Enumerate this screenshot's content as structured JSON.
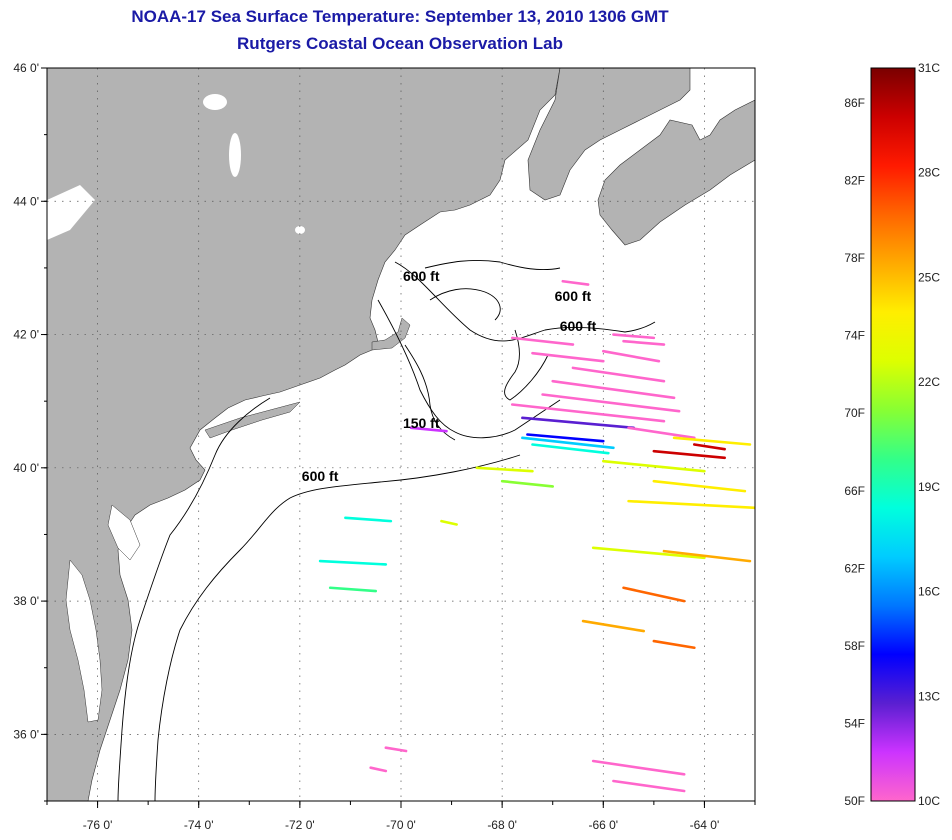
{
  "title": "NOAA-17 Sea Surface Temperature:  September 13, 2010 1306 GMT",
  "subtitle": "Rutgers Coastal Ocean Observation Lab",
  "map": {
    "lon_range": [
      -77,
      -63
    ],
    "lat_range": [
      35,
      46
    ],
    "lat_ticks": [
      {
        "value": 46,
        "label": "46 0'"
      },
      {
        "value": 44,
        "label": "44 0'"
      },
      {
        "value": 42,
        "label": "42 0'"
      },
      {
        "value": 40,
        "label": "40 0'"
      },
      {
        "value": 38,
        "label": "38 0'"
      },
      {
        "value": 36,
        "label": "36 0'"
      }
    ],
    "lon_ticks": [
      {
        "value": -76,
        "label": "-76 0'"
      },
      {
        "value": -74,
        "label": "-74 0'"
      },
      {
        "value": -72,
        "label": "-72 0'"
      },
      {
        "value": -70,
        "label": "-70 0'"
      },
      {
        "value": -68,
        "label": "-68 0'"
      },
      {
        "value": -66,
        "label": "-66 0'"
      },
      {
        "value": -64,
        "label": "-64 0'"
      }
    ],
    "land_color": "#b3b3b3",
    "ocean_color": "#ffffff",
    "grid": true,
    "contour_labels": [
      {
        "text": "600 ft",
        "lon": -69.6,
        "lat": 42.8
      },
      {
        "text": "600 ft",
        "lon": -66.6,
        "lat": 42.5
      },
      {
        "text": "600 ft",
        "lon": -66.5,
        "lat": 42.05
      },
      {
        "text": "150 ft",
        "lon": -69.6,
        "lat": 40.6
      },
      {
        "text": "600 ft",
        "lon": -71.6,
        "lat": 39.8
      }
    ]
  },
  "colorbar": {
    "fahrenheit_labels": [
      "86F",
      "82F",
      "78F",
      "74F",
      "70F",
      "66F",
      "62F",
      "58F",
      "54F",
      "50F"
    ],
    "celsius_labels": [
      "31C",
      "28C",
      "25C",
      "22C",
      "19C",
      "16C",
      "13C",
      "10C"
    ],
    "range_c": [
      10,
      31
    ],
    "colors": [
      "#ff66cc",
      "#cc33ff",
      "#5a1fd1",
      "#0000ff",
      "#0077ff",
      "#00ccff",
      "#00ffdd",
      "#33ff88",
      "#88ff33",
      "#ddff00",
      "#ffee00",
      "#ffaa00",
      "#ff6600",
      "#ff1a00",
      "#cc0000",
      "#7a0000"
    ]
  },
  "sst_streaks": [
    {
      "lon1": -67.6,
      "lat1": 40.75,
      "lon2": -65.4,
      "lat2": 40.6,
      "temp_c": 13
    },
    {
      "lon1": -67.6,
      "lat1": 40.45,
      "lon2": -65.8,
      "lat2": 40.3,
      "temp_c": 17
    },
    {
      "lon1": -67.4,
      "lat1": 40.35,
      "lon2": -65.9,
      "lat2": 40.22,
      "temp_c": 18
    },
    {
      "lon1": -67.5,
      "lat1": 40.5,
      "lon2": -66.0,
      "lat2": 40.4,
      "temp_c": 14
    },
    {
      "lon1": -67.8,
      "lat1": 40.95,
      "lon2": -64.8,
      "lat2": 40.7,
      "temp_c": 10
    },
    {
      "lon1": -67.2,
      "lat1": 41.1,
      "lon2": -64.5,
      "lat2": 40.85,
      "temp_c": 10
    },
    {
      "lon1": -67.0,
      "lat1": 41.3,
      "lon2": -64.6,
      "lat2": 41.05,
      "temp_c": 10
    },
    {
      "lon1": -66.6,
      "lat1": 41.5,
      "lon2": -64.8,
      "lat2": 41.3,
      "temp_c": 10
    },
    {
      "lon1": -67.4,
      "lat1": 41.72,
      "lon2": -66.0,
      "lat2": 41.6,
      "temp_c": 10
    },
    {
      "lon1": -66.0,
      "lat1": 41.75,
      "lon2": -64.9,
      "lat2": 41.6,
      "temp_c": 10
    },
    {
      "lon1": -67.8,
      "lat1": 41.95,
      "lon2": -66.6,
      "lat2": 41.85,
      "temp_c": 10
    },
    {
      "lon1": -65.8,
      "lat1": 42.0,
      "lon2": -65.0,
      "lat2": 41.95,
      "temp_c": 10
    },
    {
      "lon1": -65.5,
      "lat1": 40.6,
      "lon2": -64.2,
      "lat2": 40.45,
      "temp_c": 10
    },
    {
      "lon1": -65.0,
      "lat1": 40.25,
      "lon2": -63.6,
      "lat2": 40.15,
      "temp_c": 29
    },
    {
      "lon1": -64.2,
      "lat1": 40.35,
      "lon2": -63.6,
      "lat2": 40.28,
      "temp_c": 30
    },
    {
      "lon1": -66.0,
      "lat1": 40.1,
      "lon2": -64.0,
      "lat2": 39.95,
      "temp_c": 23
    },
    {
      "lon1": -65.0,
      "lat1": 39.8,
      "lon2": -63.2,
      "lat2": 39.65,
      "temp_c": 24
    },
    {
      "lon1": -65.5,
      "lat1": 39.5,
      "lon2": -63.0,
      "lat2": 39.4,
      "temp_c": 24
    },
    {
      "lon1": -64.6,
      "lat1": 40.45,
      "lon2": -63.1,
      "lat2": 40.35,
      "temp_c": 24
    },
    {
      "lon1": -66.2,
      "lat1": 38.8,
      "lon2": -64.0,
      "lat2": 38.65,
      "temp_c": 23
    },
    {
      "lon1": -64.8,
      "lat1": 38.75,
      "lon2": -63.1,
      "lat2": 38.6,
      "temp_c": 25
    },
    {
      "lon1": -65.6,
      "lat1": 38.2,
      "lon2": -64.4,
      "lat2": 38.0,
      "temp_c": 27
    },
    {
      "lon1": -66.4,
      "lat1": 37.7,
      "lon2": -65.2,
      "lat2": 37.55,
      "temp_c": 26
    },
    {
      "lon1": -65.0,
      "lat1": 37.4,
      "lon2": -64.2,
      "lat2": 37.3,
      "temp_c": 27
    },
    {
      "lon1": -68.0,
      "lat1": 39.8,
      "lon2": -67.0,
      "lat2": 39.72,
      "temp_c": 21
    },
    {
      "lon1": -68.5,
      "lat1": 40.0,
      "lon2": -67.4,
      "lat2": 39.95,
      "temp_c": 23
    },
    {
      "lon1": -71.1,
      "lat1": 39.25,
      "lon2": -70.2,
      "lat2": 39.2,
      "temp_c": 18
    },
    {
      "lon1": -69.2,
      "lat1": 39.2,
      "lon2": -68.9,
      "lat2": 39.15,
      "temp_c": 22
    },
    {
      "lon1": -71.6,
      "lat1": 38.6,
      "lon2": -70.3,
      "lat2": 38.55,
      "temp_c": 18
    },
    {
      "lon1": -71.4,
      "lat1": 38.2,
      "lon2": -70.5,
      "lat2": 38.15,
      "temp_c": 20
    },
    {
      "lon1": -69.8,
      "lat1": 40.6,
      "lon2": -69.1,
      "lat2": 40.55,
      "temp_c": 12
    },
    {
      "lon1": -66.2,
      "lat1": 35.6,
      "lon2": -64.4,
      "lat2": 35.4,
      "temp_c": 10
    },
    {
      "lon1": -65.8,
      "lat1": 35.3,
      "lon2": -64.4,
      "lat2": 35.15,
      "temp_c": 10
    },
    {
      "lon1": -70.3,
      "lat1": 35.8,
      "lon2": -69.9,
      "lat2": 35.75,
      "temp_c": 10
    },
    {
      "lon1": -70.6,
      "lat1": 35.5,
      "lon2": -70.3,
      "lat2": 35.45,
      "temp_c": 10
    },
    {
      "lon1": -65.6,
      "lat1": 41.9,
      "lon2": -64.8,
      "lat2": 41.85,
      "temp_c": 10
    },
    {
      "lon1": -66.8,
      "lat1": 42.8,
      "lon2": -66.3,
      "lat2": 42.75,
      "temp_c": 10
    }
  ]
}
